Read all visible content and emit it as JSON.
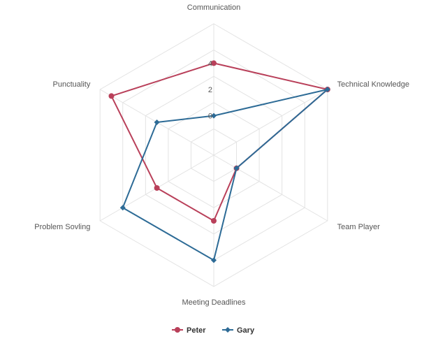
{
  "chart_data": {
    "type": "radar",
    "axes": [
      "Communication",
      "Technical Knowledge",
      "Team Player",
      "Meeting Deadlines",
      "Problem Sovling",
      "Punctuality"
    ],
    "rlim": [
      -3,
      7
    ],
    "ticks": [
      0,
      2,
      4
    ],
    "tick_labels": [
      "0",
      "2",
      "4"
    ],
    "grid": true,
    "legend_position": "bottom-center",
    "series": [
      {
        "name": "Peter",
        "values": [
          4,
          7,
          -1,
          2,
          2,
          6
        ],
        "color": "#b9405a",
        "marker": "circle"
      },
      {
        "name": "Gary",
        "values": [
          0,
          7,
          -1,
          5,
          5,
          2
        ],
        "color": "#2d6b96",
        "marker": "diamond"
      }
    ]
  },
  "colors": {
    "grid": "#e3e3e3",
    "text": "#555555"
  }
}
